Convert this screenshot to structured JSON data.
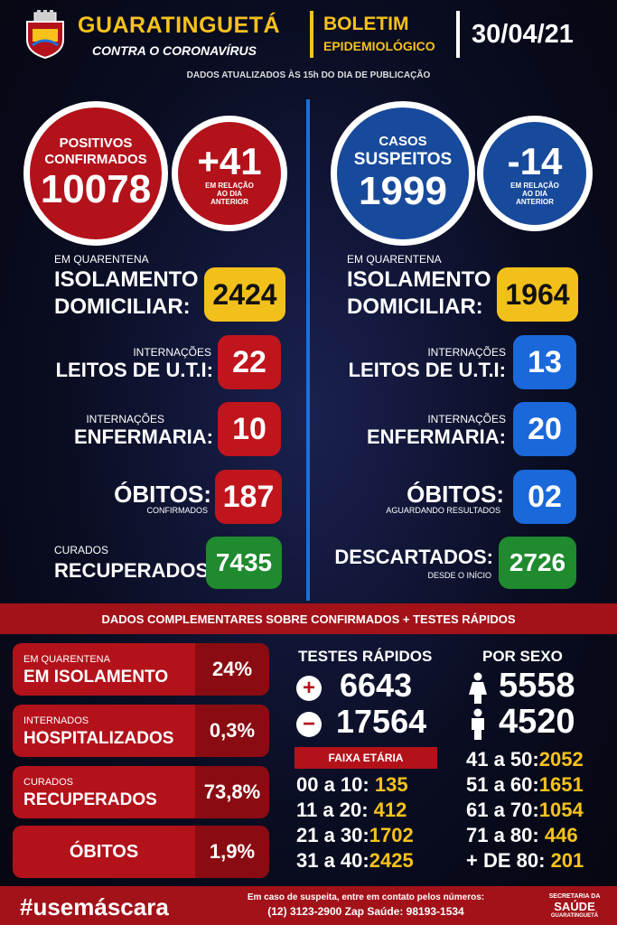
{
  "header": {
    "city": "GUARATINGUETÁ",
    "subtitle": "CONTRA O CORONAVÍRUS",
    "boletim_line1": "BOLETIM",
    "boletim_line2": "EPIDEMIOLÓGICO",
    "date": "30/04/21",
    "updated_note": "DADOS ATUALIZADOS ÀS 15h DO DIA DE PUBLICAÇÃO"
  },
  "left": {
    "confirmed": {
      "line1": "POSITIVOS",
      "line2": "CONFIRMADOS",
      "value": "10078"
    },
    "confirmed_change": {
      "value": "+41",
      "note1": "EM RELAÇÃO",
      "note2": "AO DIA",
      "note3": "ANTERIOR"
    },
    "isolation": {
      "pre": "EM QUARENTENA",
      "line1": "ISOLAMENTO",
      "line2": "DOMICILIAR:",
      "value": "2424"
    },
    "uti": {
      "pre": "INTERNAÇÕES",
      "main": "LEITOS DE U.T.I:",
      "value": "22"
    },
    "ward": {
      "pre": "INTERNAÇÕES",
      "main": "ENFERMARIA:",
      "value": "10"
    },
    "deaths": {
      "main": "ÓBITOS:",
      "sub": "CONFIRMADOS",
      "value": "187"
    },
    "recovered": {
      "pre": "CURADOS",
      "main": "RECUPERADOS:",
      "value": "7435"
    }
  },
  "right": {
    "suspected": {
      "line1": "CASOS",
      "line2": "SUSPEITOS",
      "value": "1999"
    },
    "suspected_change": {
      "value": "-14",
      "note1": "EM RELAÇÃO",
      "note2": "AO DIA",
      "note3": "ANTERIOR"
    },
    "isolation": {
      "pre": "EM QUARENTENA",
      "line1": "ISOLAMENTO",
      "line2": "DOMICILIAR:",
      "value": "1964"
    },
    "uti": {
      "pre": "INTERNAÇÕES",
      "main": "LEITOS DE U.T.I:",
      "value": "13"
    },
    "ward": {
      "pre": "INTERNAÇÕES",
      "main": "ENFERMARIA:",
      "value": "20"
    },
    "deaths": {
      "main": "ÓBITOS:",
      "sub": "AGUARDANDO RESULTADOS",
      "value": "02"
    },
    "discarded": {
      "main": "DESCARTADOS:",
      "sub": "DESDE O INÍCIO",
      "value": "2726"
    }
  },
  "complementary": {
    "banner": "DADOS COMPLEMENTARES SOBRE CONFIRMADOS + TESTES RÁPIDOS",
    "rates": [
      {
        "line1": "EM QUARENTENA",
        "line2": "EM ISOLAMENTO",
        "value": "24%"
      },
      {
        "line1": "INTERNADOS",
        "line2": "HOSPITALIZADOS",
        "value": "0,3%"
      },
      {
        "line1": "CURADOS",
        "line2": "RECUPERADOS",
        "value": "73,8%"
      },
      {
        "line1": "",
        "line2": "ÓBITOS",
        "value": "1,9%"
      }
    ],
    "rapid_tests": {
      "title": "TESTES RÁPIDOS",
      "positive": "6643",
      "negative": "17564"
    },
    "by_sex": {
      "title": "POR SEXO",
      "female": "5558",
      "male": "4520"
    },
    "age_title": "FAIXA ETÁRIA",
    "ages_left": [
      {
        "label": "00 a 10:",
        "value": "135"
      },
      {
        "label": "11 a 20:",
        "value": "412"
      },
      {
        "label": "21 a 30:",
        "value": "1702"
      },
      {
        "label": "31 a 40:",
        "value": "2425"
      }
    ],
    "ages_right": [
      {
        "label": "41 a 50:",
        "value": "2052"
      },
      {
        "label": "51 a 60:",
        "value": "1651"
      },
      {
        "label": "61 a 70:",
        "value": "1054"
      },
      {
        "label": "71 a 80:",
        "value": "446"
      },
      {
        "label": "+ DE 80:",
        "value": "201"
      }
    ]
  },
  "footer": {
    "hashtag": "#usemáscara",
    "contact_line1": "Em caso de suspeita, entre em contato pelos números:",
    "contact_line2": "(12) 3123-2900 Zap Saúde: 98193-1534",
    "dept_line1": "SECRETARIA DA",
    "dept_line2": "SAÚDE",
    "dept_line3": "GUARATINGUETÁ"
  },
  "colors": {
    "red": "#b3121b",
    "blue": "#184a9c",
    "yellow": "#f2c01b",
    "green": "#1f8a2e",
    "accent_blue": "#1a68d9"
  },
  "icons": [
    "city-crest-icon",
    "plus-icon",
    "minus-icon",
    "female-icon",
    "male-icon"
  ]
}
